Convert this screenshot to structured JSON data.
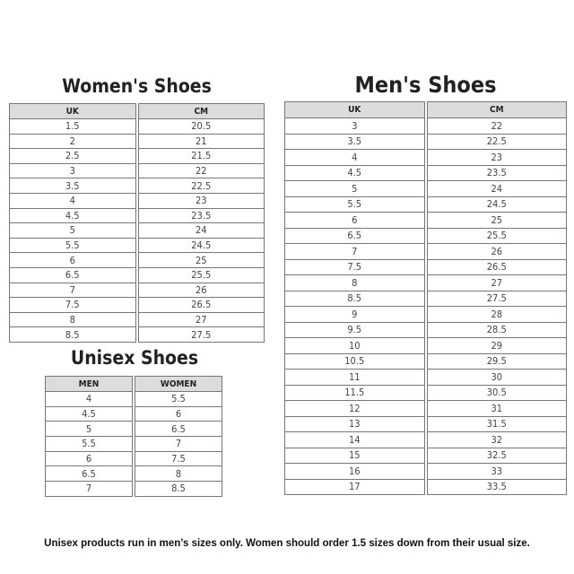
{
  "womens": {
    "title": "Women's Shoes",
    "headers": [
      "UK",
      "CM"
    ],
    "rows": [
      [
        "1.5",
        "20.5"
      ],
      [
        "2",
        "21"
      ],
      [
        "2.5",
        "21.5"
      ],
      [
        "3",
        "22"
      ],
      [
        "3.5",
        "22.5"
      ],
      [
        "4",
        "23"
      ],
      [
        "4.5",
        "23.5"
      ],
      [
        "5",
        "24"
      ],
      [
        "5.5",
        "24.5"
      ],
      [
        "6",
        "25"
      ],
      [
        "6.5",
        "25.5"
      ],
      [
        "7",
        "26"
      ],
      [
        "7.5",
        "26.5"
      ],
      [
        "8",
        "27"
      ],
      [
        "8.5",
        "27.5"
      ]
    ]
  },
  "mens": {
    "title": "Men's Shoes",
    "headers": [
      "UK",
      "CM"
    ],
    "rows": [
      [
        "3",
        "22"
      ],
      [
        "3.5",
        "22.5"
      ],
      [
        "4",
        "23"
      ],
      [
        "4.5",
        "23.5"
      ],
      [
        "5",
        "24"
      ],
      [
        "5.5",
        "24.5"
      ],
      [
        "6",
        "25"
      ],
      [
        "6.5",
        "25.5"
      ],
      [
        "7",
        "26"
      ],
      [
        "7.5",
        "26.5"
      ],
      [
        "8",
        "27"
      ],
      [
        "8.5",
        "27.5"
      ],
      [
        "9",
        "28"
      ],
      [
        "9.5",
        "28.5"
      ],
      [
        "10",
        "29"
      ],
      [
        "10.5",
        "29.5"
      ],
      [
        "11",
        "30"
      ],
      [
        "11.5",
        "30.5"
      ],
      [
        "12",
        "31"
      ],
      [
        "13",
        "31.5"
      ],
      [
        "14",
        "32"
      ],
      [
        "15",
        "32.5"
      ],
      [
        "16",
        "33"
      ],
      [
        "17",
        "33.5"
      ]
    ]
  },
  "unisex": {
    "title": "Unisex Shoes",
    "headers": [
      "MEN",
      "WOMEN"
    ],
    "rows": [
      [
        "4",
        "5.5"
      ],
      [
        "4.5",
        "6"
      ],
      [
        "5",
        "6.5"
      ],
      [
        "5.5",
        "7"
      ],
      [
        "6",
        "7.5"
      ],
      [
        "6.5",
        "8"
      ],
      [
        "7",
        "8.5"
      ]
    ]
  },
  "footer": "Unisex products run in men’s sizes only. Women should order 1.5 sizes down from their usual size."
}
